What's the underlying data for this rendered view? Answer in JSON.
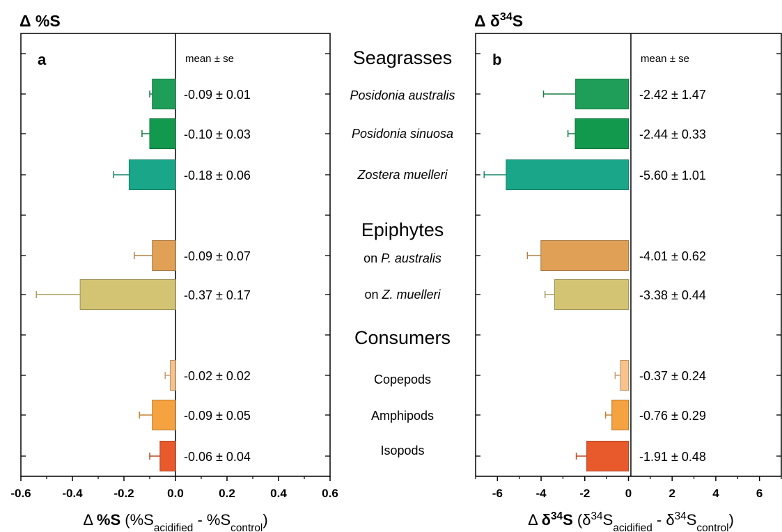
{
  "colors": {
    "posidonia_australis": "#1e9e58",
    "posidonia_sinuosa": "#13994e",
    "zostera_muelleri": "#1aa688",
    "epiphyte_pa": "#e0a055",
    "epiphyte_zm": "#d2c473",
    "copepods": "#f8c28a",
    "amphipods": "#f5a240",
    "isopods": "#e85a2c"
  },
  "middle_labels": {
    "groups": [
      {
        "key": "seagrasses",
        "text": "Seagrasses"
      },
      {
        "key": "epiphytes",
        "text": "Epiphytes"
      },
      {
        "key": "consumers",
        "text": "Consumers"
      }
    ],
    "categories": [
      {
        "key": "posidonia_australis",
        "parts": [
          {
            "text": "Posidonia australis",
            "italic": true
          }
        ]
      },
      {
        "key": "posidonia_sinuosa",
        "parts": [
          {
            "text": "Posidonia sinuosa",
            "italic": true
          }
        ]
      },
      {
        "key": "zostera_muelleri",
        "parts": [
          {
            "text": "Zostera muelleri",
            "italic": true
          }
        ]
      },
      {
        "key": "epiphyte_pa",
        "parts": [
          {
            "text": "on ",
            "italic": false
          },
          {
            "text": "P. australis",
            "italic": true
          }
        ]
      },
      {
        "key": "epiphyte_zm",
        "parts": [
          {
            "text": "on ",
            "italic": false
          },
          {
            "text": "Z. muelleri",
            "italic": true
          }
        ]
      },
      {
        "key": "copepods",
        "parts": [
          {
            "text": "Copepods",
            "italic": false
          }
        ]
      },
      {
        "key": "amphipods",
        "parts": [
          {
            "text": "Amphipods",
            "italic": false
          }
        ]
      },
      {
        "key": "isopods",
        "parts": [
          {
            "text": "Isopods",
            "italic": false
          }
        ]
      }
    ]
  },
  "chart_data": [
    {
      "type": "bar",
      "orientation": "horizontal",
      "panel": "a",
      "title": {
        "parts": [
          {
            "text": "Δ %S"
          }
        ]
      },
      "header": "mean ± se",
      "xlabel": {
        "parts": [
          {
            "text": "Δ "
          },
          {
            "text": "%S",
            "bold": true
          },
          {
            "text": " (%S"
          },
          {
            "text": "acidified",
            "sub": true
          },
          {
            "text": " - %S"
          },
          {
            "text": "control",
            "sub": true
          },
          {
            "text": ")"
          }
        ]
      },
      "xlim": [
        -0.6,
        0.6
      ],
      "xticks": [
        "-0.6",
        "-0.4",
        "-0.2",
        "0.0",
        "0.2",
        "0.4",
        "0.6"
      ],
      "grid": false,
      "bars": [
        {
          "category": "posidonia_australis",
          "mean": -0.09,
          "se": 0.01,
          "label": "-0.09 ± 0.01"
        },
        {
          "category": "posidonia_sinuosa",
          "mean": -0.1,
          "se": 0.03,
          "label": "-0.10 ± 0.03"
        },
        {
          "category": "zostera_muelleri",
          "mean": -0.18,
          "se": 0.06,
          "label": "-0.18 ± 0.06"
        },
        {
          "category": "epiphyte_pa",
          "mean": -0.09,
          "se": 0.07,
          "label": "-0.09 ± 0.07"
        },
        {
          "category": "epiphyte_zm",
          "mean": -0.37,
          "se": 0.17,
          "label": "-0.37 ± 0.17"
        },
        {
          "category": "copepods",
          "mean": -0.02,
          "se": 0.02,
          "label": "-0.02 ± 0.02"
        },
        {
          "category": "amphipods",
          "mean": -0.09,
          "se": 0.05,
          "label": "-0.09 ± 0.05"
        },
        {
          "category": "isopods",
          "mean": -0.06,
          "se": 0.04,
          "label": "-0.06 ± 0.04"
        }
      ]
    },
    {
      "type": "bar",
      "orientation": "horizontal",
      "panel": "b",
      "title": {
        "parts": [
          {
            "text": "Δ δ"
          },
          {
            "text": "34",
            "sup": true
          },
          {
            "text": "S"
          }
        ]
      },
      "header": "mean ± se",
      "xlabel": {
        "parts": [
          {
            "text": "Δ "
          },
          {
            "text": "δ",
            "bold": true
          },
          {
            "text": "34",
            "sup": true,
            "bold": true
          },
          {
            "text": "S",
            "bold": true
          },
          {
            "text": " (δ"
          },
          {
            "text": "34",
            "sup": true
          },
          {
            "text": "S"
          },
          {
            "text": "acidified",
            "sub": true
          },
          {
            "text": " - δ"
          },
          {
            "text": "34",
            "sup": true
          },
          {
            "text": "S"
          },
          {
            "text": "control",
            "sub": true
          },
          {
            "text": ")"
          }
        ]
      },
      "xlim": [
        -7,
        7
      ],
      "xticks": [
        "-6",
        "-4",
        "-2",
        "0",
        "2",
        "4",
        "6"
      ],
      "grid": false,
      "bars": [
        {
          "category": "posidonia_australis",
          "mean": -2.42,
          "se": 1.47,
          "label": "-2.42 ± 1.47"
        },
        {
          "category": "posidonia_sinuosa",
          "mean": -2.44,
          "se": 0.33,
          "label": "-2.44 ± 0.33"
        },
        {
          "category": "zostera_muelleri",
          "mean": -5.6,
          "se": 1.01,
          "label": "-5.60 ± 1.01"
        },
        {
          "category": "epiphyte_pa",
          "mean": -4.01,
          "se": 0.62,
          "label": "-4.01 ± 0.62"
        },
        {
          "category": "epiphyte_zm",
          "mean": -3.38,
          "se": 0.44,
          "label": "-3.38 ± 0.44"
        },
        {
          "category": "copepods",
          "mean": -0.37,
          "se": 0.24,
          "label": "-0.37 ± 0.24"
        },
        {
          "category": "amphipods",
          "mean": -0.76,
          "se": 0.29,
          "label": "-0.76 ± 0.29"
        },
        {
          "category": "isopods",
          "mean": -1.91,
          "se": 0.48,
          "label": "-1.91 ± 0.48"
        }
      ]
    }
  ]
}
